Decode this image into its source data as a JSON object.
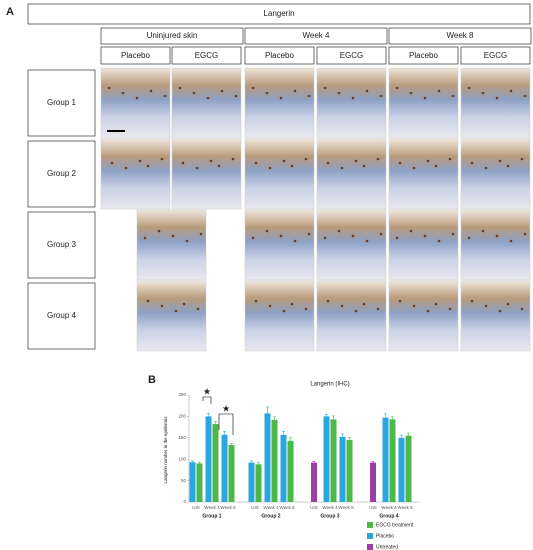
{
  "panel_a": {
    "label": "A",
    "title": "Langerin",
    "conditions": [
      "Uninjured skin",
      "Week 4",
      "Week 8"
    ],
    "treatments": [
      "Placebo",
      "EGCG",
      "Placebo",
      "EGCG",
      "Placebo",
      "EGCG"
    ],
    "groups": [
      "Group 1",
      "Group 2",
      "Group 3",
      "Group 4"
    ]
  },
  "panel_b": {
    "label": "B"
  },
  "chart_data": {
    "type": "bar",
    "title": "Langerin (IHC)",
    "y_label": "Langerin number in the epidermis",
    "categories": [
      "UIS",
      "Week 4",
      "Week 8",
      "UIS",
      "Week 4",
      "Week 8",
      "UIS",
      "Week 4",
      "Week 8",
      "UIS",
      "Week 4",
      "Week 8"
    ],
    "groups": [
      "Group 1",
      "Group 2",
      "Group 3",
      "Group 4"
    ],
    "series": [
      {
        "name": "EGCG treatment",
        "color": "#4cb848",
        "values": [
          90,
          182,
          133,
          88,
          192,
          143,
          null,
          193,
          145,
          null,
          193,
          155
        ],
        "errors": [
          3,
          6,
          3,
          4,
          7,
          7,
          null,
          8,
          6,
          null,
          6,
          6
        ]
      },
      {
        "name": "Placebo",
        "color": "#2aa7df",
        "values": [
          93,
          200,
          157,
          92,
          207,
          157,
          null,
          200,
          152,
          null,
          197,
          150
        ],
        "errors": [
          3,
          7,
          8,
          4,
          15,
          8,
          null,
          5,
          7,
          null,
          9,
          6
        ]
      },
      {
        "name": "Untreated",
        "color": "#9b3fa6",
        "values": [
          null,
          null,
          null,
          null,
          null,
          null,
          92,
          null,
          null,
          92,
          null,
          null
        ],
        "errors": [
          null,
          null,
          null,
          null,
          null,
          null,
          3,
          null,
          null,
          3,
          null,
          null
        ]
      }
    ],
    "annotations": [
      "★",
      "★"
    ],
    "ylim": [
      0,
      250
    ],
    "yticks": [
      0,
      50,
      100,
      150,
      200,
      250
    ]
  }
}
